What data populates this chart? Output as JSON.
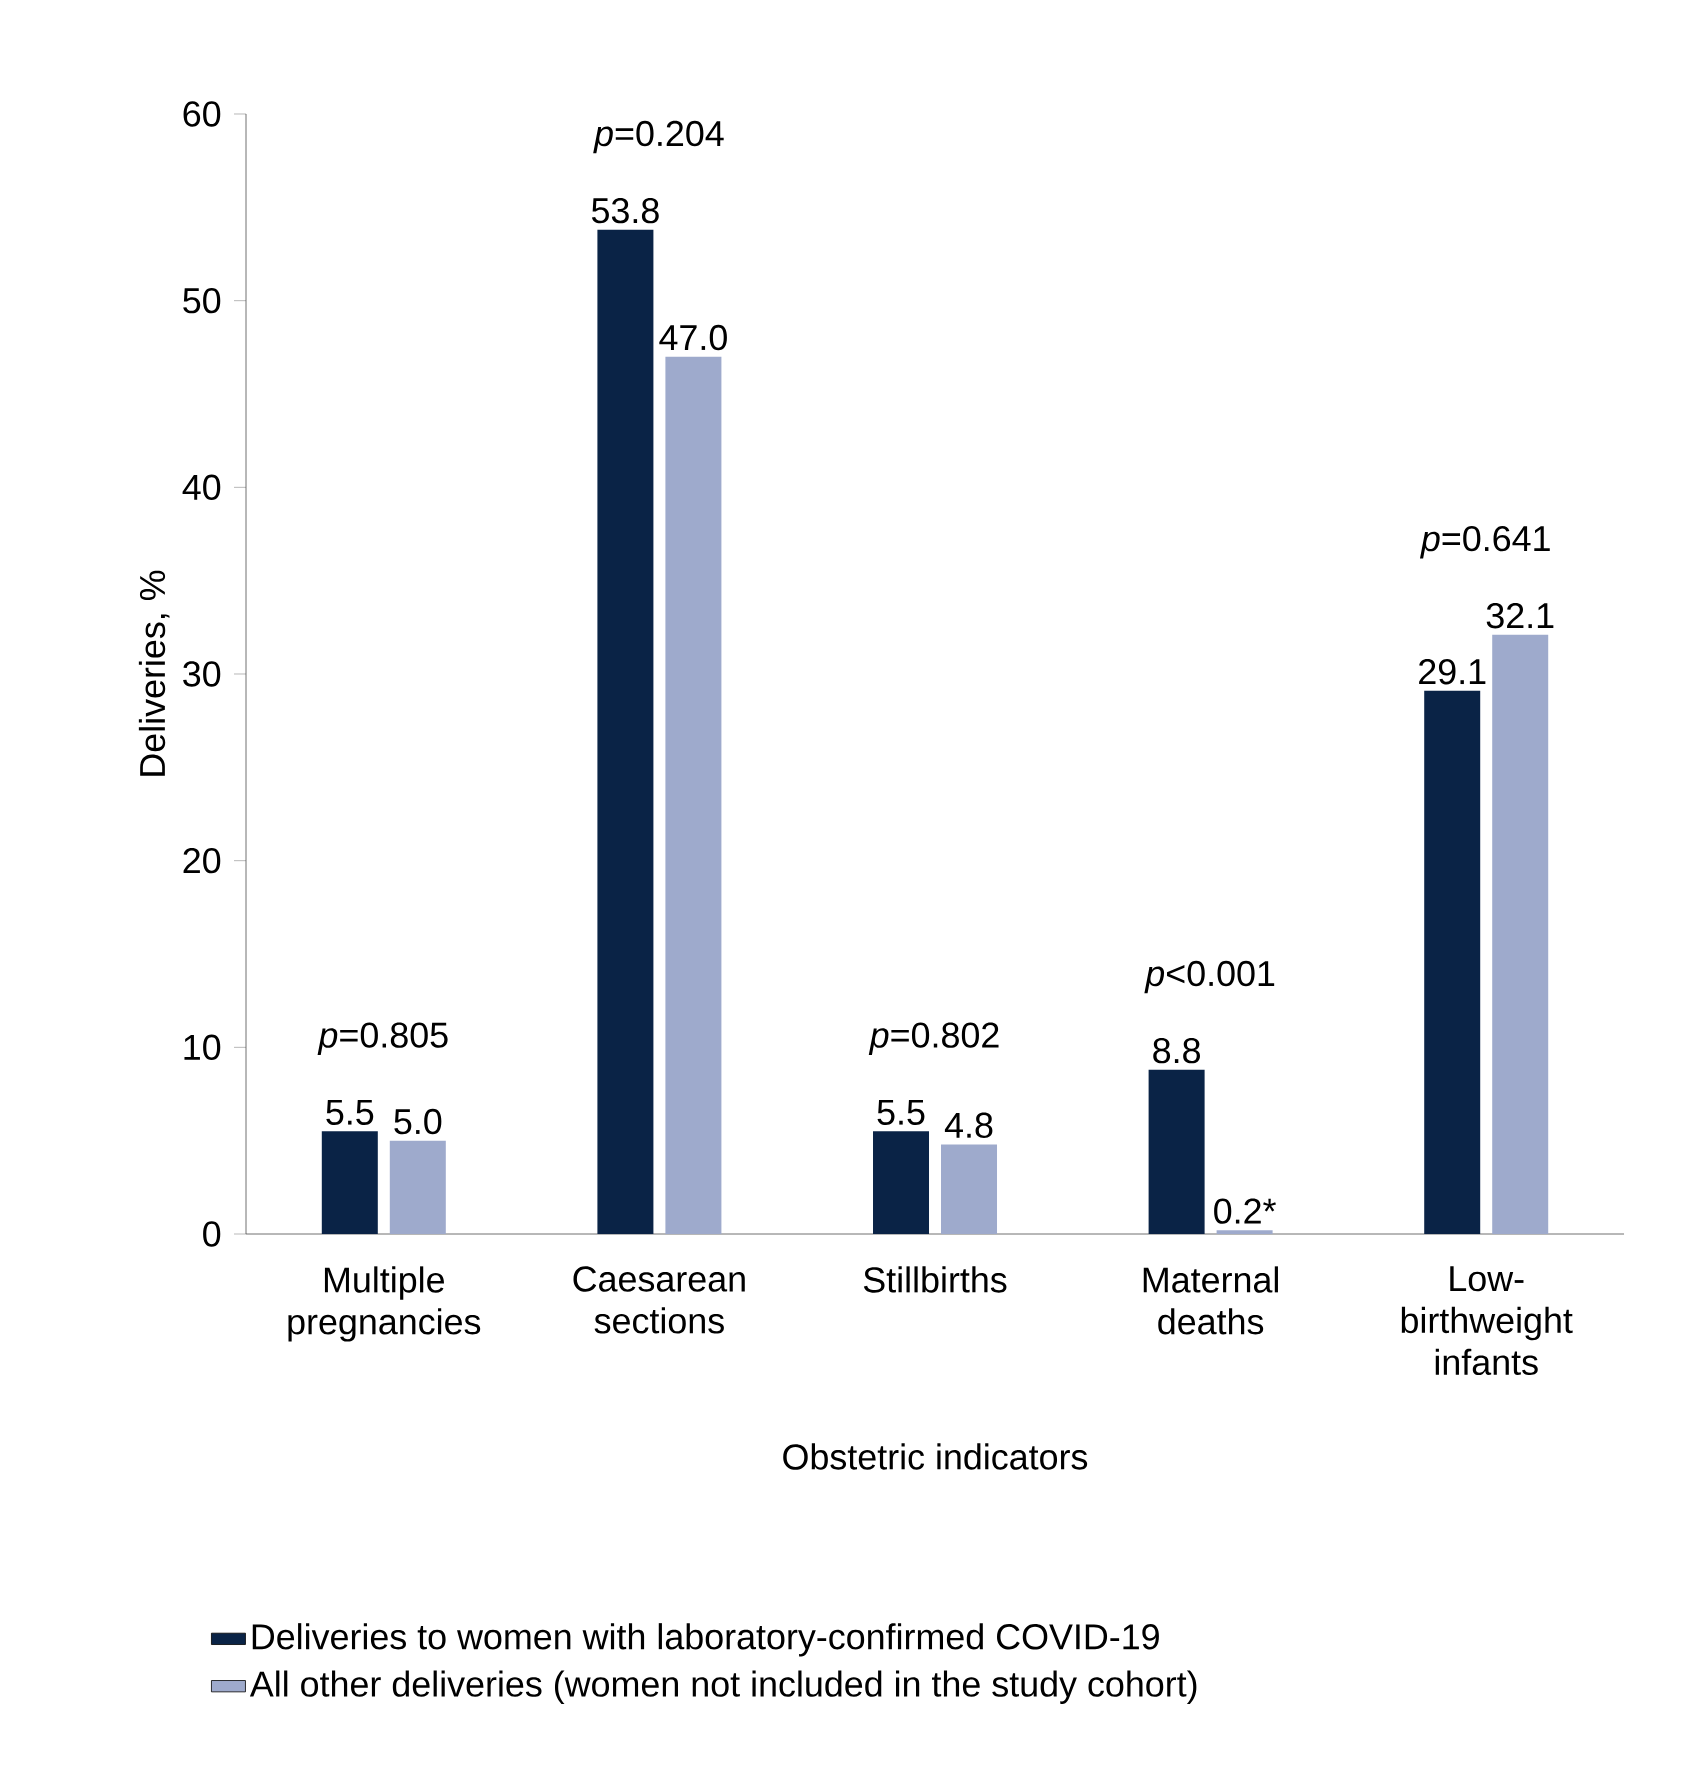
{
  "chart_data": {
    "type": "bar",
    "xlabel": "Obstetric indicators",
    "ylabel": "Deliveries, %",
    "categories": [
      "Multiple pregnancies",
      "Caesarean sections",
      "Stillbirths",
      "Maternal deaths",
      "Low-birthweight infants"
    ],
    "series": [
      {
        "name": "Deliveries to women with laboratory-confirmed COVID-19",
        "color": "#0a2346",
        "values": [
          5.5,
          53.8,
          5.5,
          8.8,
          29.1
        ],
        "value_labels": [
          "5.5",
          "53.8",
          "5.5",
          "8.8",
          "29.1"
        ]
      },
      {
        "name": "All other deliveries (women not included in the study cohort)",
        "color": "#9eaacc",
        "values": [
          5.0,
          47.0,
          4.8,
          0.2,
          32.1
        ],
        "value_labels": [
          "5.0",
          "47.0",
          "4.8",
          "0.2*",
          "32.1"
        ]
      }
    ],
    "ylim": [
      0,
      60
    ],
    "yticks": [
      0,
      10,
      20,
      30,
      40,
      50,
      60
    ],
    "grid": false,
    "legend": "bottom",
    "annotations": [
      "*p*=0.805",
      "*p*=0.204",
      "*p*=0.802",
      "*p*<0.001",
      "*p*=0.641"
    ]
  }
}
